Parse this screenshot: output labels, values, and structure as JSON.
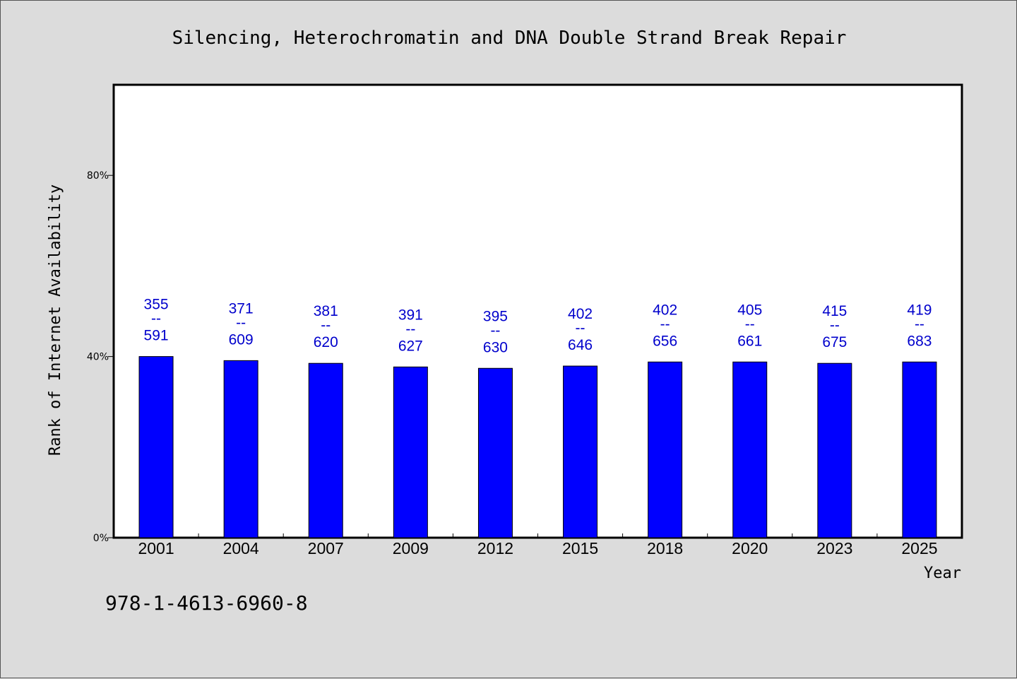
{
  "footer": {
    "isbn": "978-1-4613-6960-8"
  },
  "chart_data": {
    "type": "bar",
    "title": "Silencing, Heterochromatin and DNA Double Strand Break Repair",
    "xlabel": "Year",
    "ylabel": "Rank of Internet Availability",
    "ylim": [
      0,
      100
    ],
    "yticks": [
      {
        "value": 0,
        "label": "0%"
      },
      {
        "value": 40,
        "label": "40%"
      },
      {
        "value": 80,
        "label": "80%"
      }
    ],
    "categories": [
      "2001",
      "2004",
      "2007",
      "2009",
      "2012",
      "2015",
      "2018",
      "2020",
      "2023",
      "2025"
    ],
    "values": [
      40.0,
      39.1,
      38.5,
      37.7,
      37.4,
      37.9,
      38.8,
      38.8,
      38.5,
      38.8
    ],
    "bar_color": "#0000ff",
    "label_color": "#0000cc",
    "labels": [
      {
        "top": "355",
        "sep": "--",
        "bottom": "591"
      },
      {
        "top": "371",
        "sep": "--",
        "bottom": "609"
      },
      {
        "top": "381",
        "sep": "--",
        "bottom": "620"
      },
      {
        "top": "391",
        "sep": "--",
        "bottom": "627"
      },
      {
        "top": "395",
        "sep": "--",
        "bottom": "630"
      },
      {
        "top": "402",
        "sep": "--",
        "bottom": "646"
      },
      {
        "top": "402",
        "sep": "--",
        "bottom": "656"
      },
      {
        "top": "405",
        "sep": "--",
        "bottom": "661"
      },
      {
        "top": "415",
        "sep": "--",
        "bottom": "675"
      },
      {
        "top": "419",
        "sep": "--",
        "bottom": "683"
      }
    ],
    "grid": false,
    "legend": "none"
  }
}
